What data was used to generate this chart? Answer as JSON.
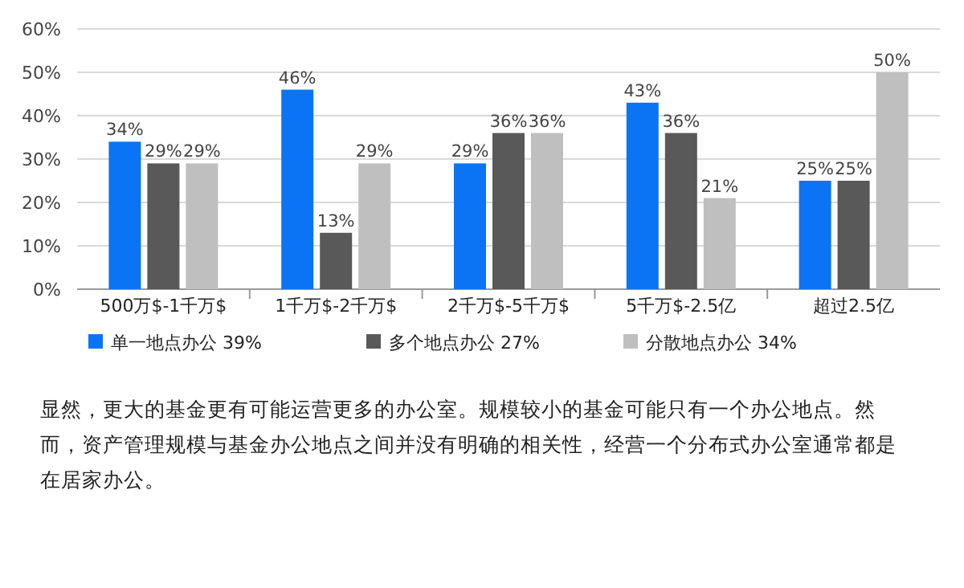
{
  "chart_data": {
    "type": "bar",
    "categories": [
      "500万$-1千万$",
      "1千万$-2千万$",
      "2千万$-5千万$",
      "5千万$-2.5亿",
      "超过2.5亿"
    ],
    "series": [
      {
        "name": "单一地点办公   39%",
        "color": "#0a74f5",
        "values": [
          34,
          46,
          29,
          43,
          25
        ],
        "value_labels": [
          "34%",
          "46%",
          "29%",
          "43%",
          "25%"
        ]
      },
      {
        "name": "多个地点办公   27%",
        "color": "#595959",
        "values": [
          29,
          13,
          36,
          36,
          25
        ],
        "value_labels": [
          "29%",
          "13%",
          "36%",
          "36%",
          "25%"
        ]
      },
      {
        "name": "分散地点办公   34%",
        "color": "#bfbfbf",
        "values": [
          29,
          29,
          36,
          21,
          50
        ],
        "value_labels": [
          "29%",
          "29%",
          "36%",
          "21%",
          "50%"
        ]
      }
    ],
    "ylim": [
      0,
      60
    ],
    "yticks": [
      {
        "value": 0,
        "label": "0%"
      },
      {
        "value": 10,
        "label": "10%"
      },
      {
        "value": 20,
        "label": "20%"
      },
      {
        "value": 30,
        "label": "30%"
      },
      {
        "value": 40,
        "label": "40%"
      },
      {
        "value": 50,
        "label": "50%"
      },
      {
        "value": 60,
        "label": "60%"
      }
    ],
    "grid": "y",
    "legend": "bottom",
    "annotations": [
      "显然，更大的基金更有可能运营更多的办公室。规模较小的基金可能只有一个办公地点。然而，资产管理规模与基金办公地点之间并没有明确的相关性，经营一个分布式办公室通常都是在居家办公。"
    ]
  }
}
